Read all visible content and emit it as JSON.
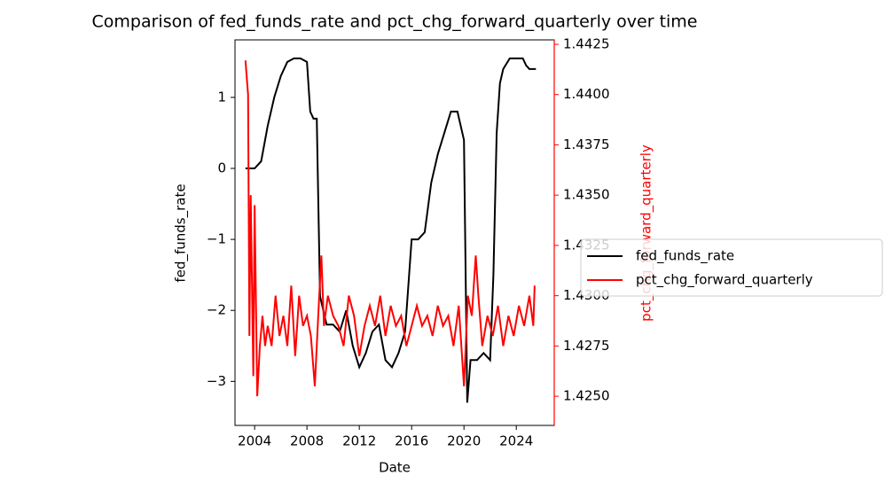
{
  "chart_data": {
    "type": "line",
    "title": "Comparison of fed_funds_rate and pct_chg_forward_quarterly over time",
    "xlabel": "Date",
    "ylabel": "fed_funds_rate",
    "y2label": "pct_chg_forward_quarterly",
    "y2label_color": "#ff0000",
    "xlim": [
      2002.5,
      2026.9
    ],
    "xticks": [
      2004,
      2008,
      2012,
      2016,
      2020,
      2024
    ],
    "ylim": [
      -3.62,
      1.81
    ],
    "yticks": [
      {
        "value": -3,
        "label": "−3"
      },
      {
        "value": -2,
        "label": "−2"
      },
      {
        "value": -1,
        "label": "−1"
      },
      0,
      1
    ],
    "y2lim": [
      1.42355,
      1.44272
    ],
    "y2ticks": [
      {
        "value": 1.425,
        "label": "1.4250"
      },
      1.4275,
      {
        "value": 1.43,
        "label": "1.4300"
      },
      1.4325,
      {
        "value": 1.435,
        "label": "1.4350"
      },
      1.4375,
      {
        "value": 1.44,
        "label": "1.4400"
      },
      1.4425
    ],
    "legend_loc": "right",
    "series": [
      {
        "name": "fed_funds_rate",
        "color": "#000000",
        "x": [
          2003.3,
          2004.0,
          2004.5,
          2005.0,
          2005.5,
          2006.0,
          2006.5,
          2007.0,
          2007.5,
          2008.0,
          2008.25,
          2008.5,
          2008.75,
          2009.0,
          2009.25,
          2009.5,
          2010.0,
          2010.5,
          2011.0,
          2011.5,
          2012.0,
          2012.5,
          2013.0,
          2013.5,
          2014.0,
          2014.5,
          2015.0,
          2015.5,
          2016.0,
          2016.5,
          2017.0,
          2017.5,
          2018.0,
          2018.5,
          2019.0,
          2019.5,
          2020.0,
          2020.25,
          2020.5,
          2021.0,
          2021.5,
          2022.0,
          2022.25,
          2022.5,
          2022.75,
          2023.0,
          2023.5,
          2024.0,
          2024.5,
          2024.75,
          2025.0,
          2025.5
        ],
        "values": [
          0.0,
          0.0,
          0.1,
          0.6,
          1.0,
          1.3,
          1.5,
          1.55,
          1.55,
          1.5,
          0.8,
          0.7,
          0.7,
          -1.8,
          -2.0,
          -2.2,
          -2.2,
          -2.3,
          -2.0,
          -2.5,
          -2.8,
          -2.6,
          -2.3,
          -2.2,
          -2.7,
          -2.8,
          -2.6,
          -2.3,
          -1.0,
          -1.0,
          -0.9,
          -0.2,
          0.2,
          0.5,
          0.8,
          0.8,
          0.4,
          -3.3,
          -2.7,
          -2.7,
          -2.6,
          -2.7,
          -1.5,
          0.5,
          1.2,
          1.4,
          1.55,
          1.55,
          1.55,
          1.45,
          1.4,
          1.4
        ]
      },
      {
        "name": "pct_chg_forward_quarterly",
        "color": "#ff0000",
        "axis": "y2",
        "x": [
          2003.3,
          2003.5,
          2003.6,
          2003.7,
          2003.9,
          2004.0,
          2004.2,
          2004.4,
          2004.6,
          2004.8,
          2005.0,
          2005.3,
          2005.6,
          2005.9,
          2006.2,
          2006.5,
          2006.8,
          2007.1,
          2007.4,
          2007.7,
          2008.0,
          2008.3,
          2008.6,
          2008.9,
          2009.1,
          2009.3,
          2009.6,
          2010.0,
          2010.4,
          2010.8,
          2011.2,
          2011.6,
          2012.0,
          2012.4,
          2012.8,
          2013.2,
          2013.6,
          2014.0,
          2014.4,
          2014.8,
          2015.2,
          2015.6,
          2016.0,
          2016.4,
          2016.8,
          2017.2,
          2017.6,
          2018.0,
          2018.4,
          2018.8,
          2019.2,
          2019.6,
          2020.0,
          2020.3,
          2020.6,
          2020.9,
          2021.1,
          2021.4,
          2021.8,
          2022.2,
          2022.6,
          2023.0,
          2023.4,
          2023.8,
          2024.2,
          2024.6,
          2025.0,
          2025.3,
          2025.4
        ],
        "values": [
          1.4417,
          1.44,
          1.428,
          1.435,
          1.426,
          1.4345,
          1.425,
          1.4275,
          1.429,
          1.4275,
          1.4285,
          1.4275,
          1.43,
          1.428,
          1.429,
          1.4275,
          1.4305,
          1.427,
          1.43,
          1.4285,
          1.429,
          1.428,
          1.4255,
          1.4295,
          1.432,
          1.4285,
          1.43,
          1.429,
          1.4285,
          1.4275,
          1.43,
          1.429,
          1.427,
          1.4285,
          1.4295,
          1.4285,
          1.43,
          1.428,
          1.4295,
          1.4285,
          1.429,
          1.4275,
          1.4285,
          1.4295,
          1.4285,
          1.429,
          1.428,
          1.4295,
          1.4285,
          1.429,
          1.4275,
          1.4295,
          1.4255,
          1.43,
          1.429,
          1.432,
          1.43,
          1.4275,
          1.429,
          1.428,
          1.4295,
          1.4275,
          1.429,
          1.428,
          1.4295,
          1.4285,
          1.43,
          1.4285,
          1.4305
        ]
      }
    ]
  }
}
